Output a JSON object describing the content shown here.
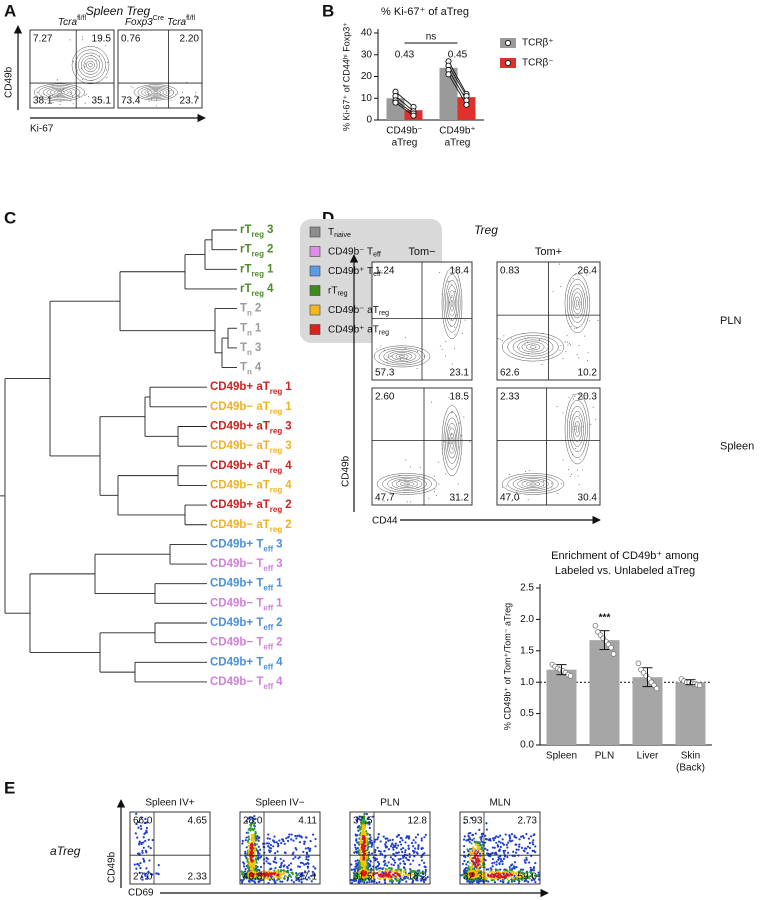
{
  "panel_a": {
    "letter": "A",
    "title": "Spleen Treg",
    "y_label": "CD49b",
    "x_label": "Ki-67",
    "plots": [
      {
        "title": [
          {
            "text": "Tcra",
            "italic": true
          },
          {
            "text": "fl/fl",
            "sup": true
          }
        ],
        "quadrants": {
          "ul": "7.27",
          "ur": "19.5",
          "ll": "38.1",
          "lr": "35.1"
        }
      },
      {
        "title": [
          {
            "text": "Foxp3",
            "italic": true
          },
          {
            "text": "Cre",
            "sup": true
          },
          {
            "text": "Tcra",
            "italic": true
          },
          {
            "text": "fl/fl",
            "sup": true
          }
        ],
        "quadrants": {
          "ul": "0.76",
          "ur": "2.20",
          "ll": "73.4",
          "lr": "23.7"
        }
      }
    ]
  },
  "chart_data": [
    {
      "letter": "B",
      "type": "bar",
      "title": "% Ki-67⁺ of aTreg",
      "y_label": "% Ki-67⁺ of CD44ʰⁱ Foxp3⁺",
      "categories": [
        [
          "CD49b⁻",
          "aTreg"
        ],
        [
          "CD49b⁺",
          "aTreg"
        ]
      ],
      "series": [
        {
          "name": "TCRβ⁺",
          "color": "#9a9a9a",
          "values": [
            10,
            24
          ],
          "points": [
            [
              13,
              11,
              9,
              8
            ],
            [
              27,
              25,
              23,
              21
            ]
          ]
        },
        {
          "name": "TCRβ⁻",
          "color": "#e0302c",
          "values": [
            4.5,
            10.5
          ],
          "points": [
            [
              6,
              4,
              3,
              2
            ],
            [
              12,
              11,
              9,
              7
            ]
          ]
        }
      ],
      "paired_points": true,
      "ylim": [
        0,
        40
      ],
      "yticks": [
        0,
        10,
        20,
        30,
        40
      ],
      "annotations": [
        {
          "category": 0,
          "text": "0.43"
        },
        {
          "category": 1,
          "text": "0.45"
        }
      ],
      "bracket": {
        "from": 0,
        "to": 1,
        "text": "ns"
      },
      "legend": "right"
    },
    {
      "type": "bar",
      "title": [
        "Enrichment of CD49b⁺ among",
        "Labeled vs. Unlabeled aTreg"
      ],
      "y_label": "% CD49b⁺ of Tom⁺/Tom⁻ aTreg",
      "categories": [
        [
          "Spleen"
        ],
        [
          "PLN"
        ],
        [
          "Liver"
        ],
        [
          "Skin",
          "(Back)"
        ]
      ],
      "values": [
        1.2,
        1.67,
        1.08,
        1.0
      ],
      "errors": [
        0.08,
        0.15,
        0.15,
        0.04
      ],
      "points": [
        [
          1.28,
          1.25,
          1.22,
          1.2,
          1.18,
          1.15,
          1.12,
          1.1
        ],
        [
          1.9,
          1.8,
          1.75,
          1.7,
          1.65,
          1.6,
          1.55,
          1.45
        ],
        [
          1.3,
          1.2,
          1.15,
          1.1,
          1.05,
          1.0,
          0.95,
          0.9
        ],
        [
          1.05,
          1.02,
          1.0,
          1.0,
          0.98,
          0.97,
          0.96,
          0.95
        ]
      ],
      "color": "#a6a6a6",
      "ylim": [
        0,
        2.5
      ],
      "yticks": [
        {
          "value": 0,
          "label": "0.0"
        },
        0.5,
        {
          "value": 1,
          "label": "1.0"
        },
        1.5,
        {
          "value": 2,
          "label": "2.0"
        },
        2.5
      ],
      "reference_line": 1,
      "annotations": [
        {
          "category": 1,
          "text": "***"
        }
      ]
    }
  ],
  "panel_c": {
    "letter": "C",
    "legend": [
      {
        "text": "T",
        "sub": "naive",
        "color": "#8c8c8c"
      },
      {
        "text": "CD49b⁻ T",
        "sub": "eff",
        "color": "#de8ee6"
      },
      {
        "text": "CD49b⁺ T",
        "sub": "eff",
        "color": "#5b9be0"
      },
      {
        "text": "rT",
        "sub": "reg",
        "color": "#3f8a1f"
      },
      {
        "text": "CD49b⁻ aT",
        "sub": "reg",
        "color": "#f2b61e"
      },
      {
        "text": "CD49b⁺ aT",
        "sub": "reg",
        "color": "#d8241f"
      }
    ],
    "leaves": [
      {
        "text": "rT",
        "sub": "reg",
        "num": "3",
        "color": "#4e8a2a"
      },
      {
        "text": "rT",
        "sub": "reg",
        "num": "2",
        "color": "#4e8a2a"
      },
      {
        "text": "rT",
        "sub": "reg",
        "num": "1",
        "color": "#4e8a2a"
      },
      {
        "text": "rT",
        "sub": "reg",
        "num": "4",
        "color": "#4e8a2a"
      },
      {
        "text": "T",
        "sub": "n",
        "num": "2",
        "color": "#9b9b9b"
      },
      {
        "text": "T",
        "sub": "n",
        "num": "1",
        "color": "#9b9b9b"
      },
      {
        "text": "T",
        "sub": "n",
        "num": "3",
        "color": "#9b9b9b"
      },
      {
        "text": "T",
        "sub": "n",
        "num": "4",
        "color": "#9b9b9b"
      },
      {
        "text": "CD49b+ aT",
        "sub": "reg",
        "num": "1",
        "color": "#cf2320"
      },
      {
        "text": "CD49b− aT",
        "sub": "reg",
        "num": "1",
        "color": "#f0b224"
      },
      {
        "text": "CD49b+ aT",
        "sub": "reg",
        "num": "3",
        "color": "#cf2320"
      },
      {
        "text": "CD49b− aT",
        "sub": "reg",
        "num": "3",
        "color": "#f0b224"
      },
      {
        "text": "CD49b+ aT",
        "sub": "reg",
        "num": "4",
        "color": "#cf2320"
      },
      {
        "text": "CD49b− aT",
        "sub": "reg",
        "num": "4",
        "color": "#f0b224"
      },
      {
        "text": "CD49b+ aT",
        "sub": "reg",
        "num": "2",
        "color": "#cf2320"
      },
      {
        "text": "CD49b− aT",
        "sub": "reg",
        "num": "2",
        "color": "#f0b224"
      },
      {
        "text": "CD49b+ T",
        "sub": "eff",
        "num": "3",
        "color": "#4a90dc"
      },
      {
        "text": "CD49b− T",
        "sub": "eff",
        "num": "3",
        "color": "#d27fdc"
      },
      {
        "text": "CD49b+ T",
        "sub": "eff",
        "num": "1",
        "color": "#4a90dc"
      },
      {
        "text": "CD49b− T",
        "sub": "eff",
        "num": "1",
        "color": "#d27fdc"
      },
      {
        "text": "CD49b+ T",
        "sub": "eff",
        "num": "2",
        "color": "#4a90dc"
      },
      {
        "text": "CD49b− T",
        "sub": "eff",
        "num": "2",
        "color": "#d27fdc"
      },
      {
        "text": "CD49b+ T",
        "sub": "eff",
        "num": "4",
        "color": "#4a90dc"
      },
      {
        "text": "CD49b− T",
        "sub": "eff",
        "num": "4",
        "color": "#d27fdc"
      }
    ]
  },
  "panel_d": {
    "letter": "D",
    "title": "Treg",
    "y_label": "CD49b",
    "x_label": "CD44",
    "columns": [
      "Tom−",
      "Tom+"
    ],
    "rows": [
      "PLN",
      "Spleen"
    ],
    "plots": [
      {
        "quadrants": {
          "ul": "1.24",
          "ur": "18.4",
          "ll": "57.3",
          "lr": "23.1"
        }
      },
      {
        "quadrants": {
          "ul": "0.83",
          "ur": "26.4",
          "ll": "62.6",
          "lr": "10.2"
        }
      },
      {
        "quadrants": {
          "ul": "2.60",
          "ur": "18.5",
          "ll": "47.7",
          "lr": "31.2"
        }
      },
      {
        "quadrants": {
          "ul": "2.33",
          "ur": "20.3",
          "ll": "47.0",
          "lr": "30.4"
        }
      }
    ]
  },
  "panel_e": {
    "letter": "E",
    "row_label": "aTreg",
    "y_label": "CD49b",
    "x_label": "CD69",
    "plots": [
      {
        "title": "Spleen IV+",
        "quadrants": {
          "ul": "66.0",
          "ur": "4.65",
          "ll": "27.0",
          "lr": "2.33"
        }
      },
      {
        "title": "Spleen IV−",
        "quadrants": {
          "ul": "28.0",
          "ur": "4.11",
          "ll": "40.8",
          "lr": "27.1"
        }
      },
      {
        "title": "PLN",
        "quadrants": {
          "ul": "37.5",
          "ur": "12.8",
          "ll": "31.5",
          "lr": "18.2"
        }
      },
      {
        "title": "MLN",
        "quadrants": {
          "ul": "5.93",
          "ur": "2.73",
          "ll": "32.3",
          "lr": "59.0"
        }
      }
    ]
  }
}
